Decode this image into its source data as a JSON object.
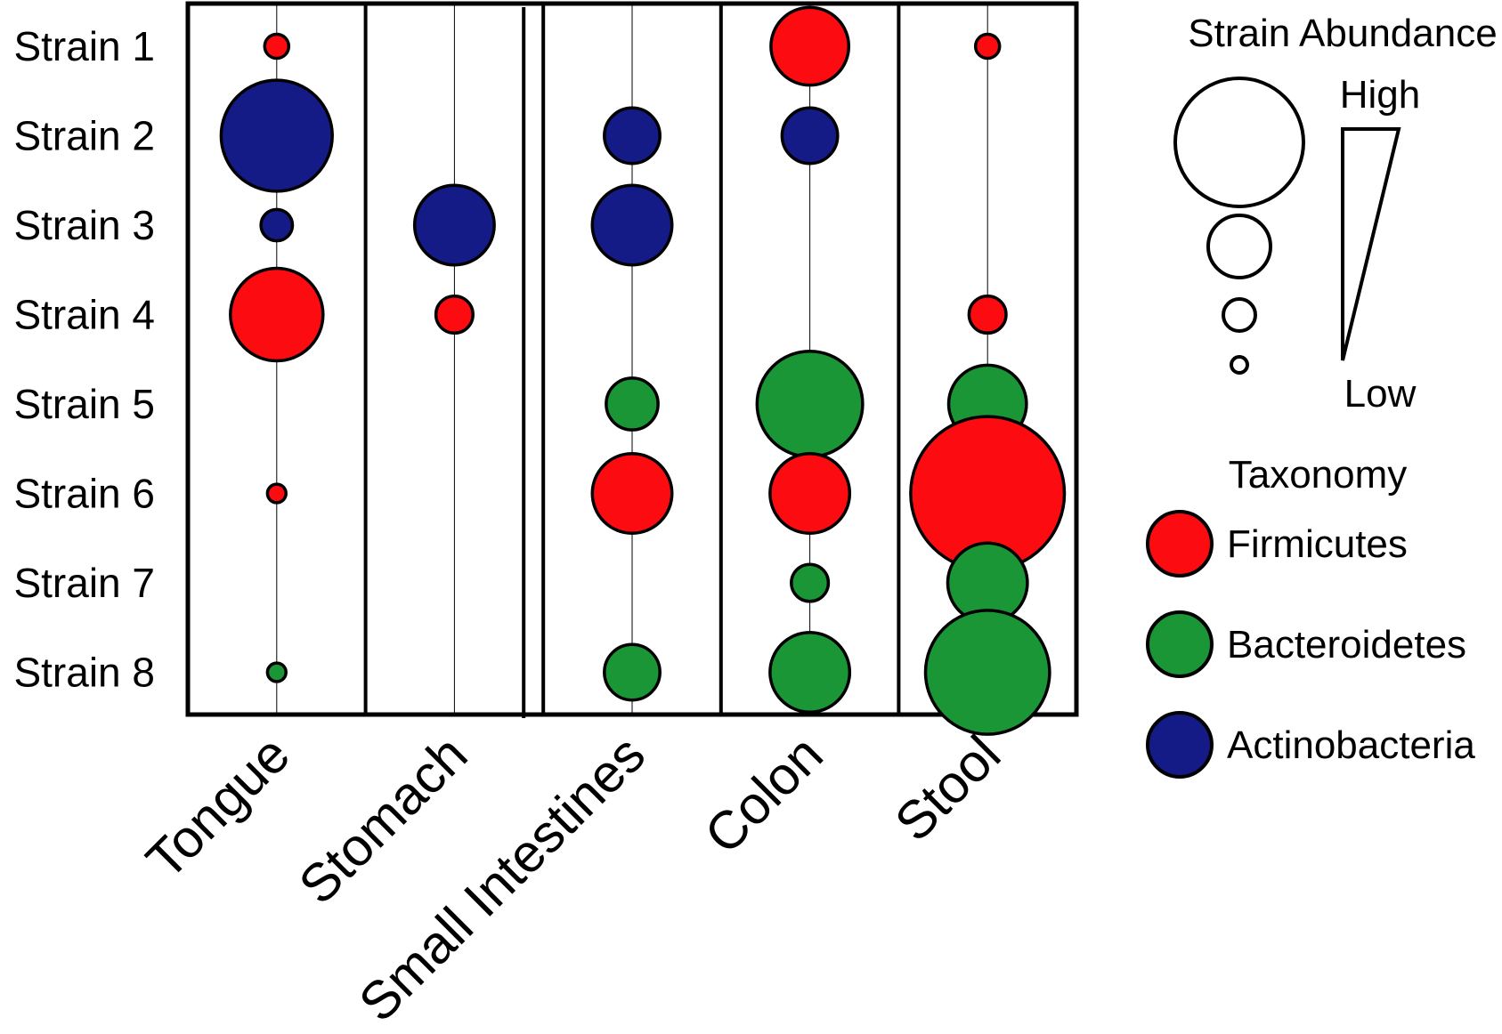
{
  "chart_data": {
    "type": "bubble-matrix",
    "sites": [
      "Tongue",
      "Stomach",
      "Small Intestines",
      "Colon",
      "Stool"
    ],
    "strains": [
      "Strain 1",
      "Strain 2",
      "Strain 3",
      "Strain 4",
      "Strain 5",
      "Strain 6",
      "Strain 7",
      "Strain 8"
    ],
    "taxonomy": [
      "Firmicutes",
      "Actinobacteria",
      "Actinobacteria",
      "Firmicutes",
      "Bacteroidetes",
      "Firmicutes",
      "Bacteroidetes",
      "Bacteroidetes"
    ],
    "abundance": {
      "note_units": "relative abundance, 0 = absent, 1 = highest",
      "values": [
        [
          0.13,
          0,
          0,
          0.42,
          0.13
        ],
        [
          0.6,
          0,
          0.3,
          0.3,
          0
        ],
        [
          0.17,
          0.43,
          0.43,
          0,
          0
        ],
        [
          0.5,
          0.2,
          0,
          0,
          0.2
        ],
        [
          0,
          0,
          0.28,
          0.57,
          0.42
        ],
        [
          0.1,
          0,
          0.43,
          0.43,
          0.83
        ],
        [
          0,
          0,
          0,
          0.2,
          0.43
        ],
        [
          0.1,
          0,
          0.3,
          0.43,
          0.67
        ]
      ]
    },
    "legend": {
      "abundance_title": "Strain Abundance",
      "high_label": "High",
      "low_label": "Low",
      "taxonomy_title": "Taxonomy",
      "groups": [
        {
          "name": "Firmicutes",
          "color": "#fc0c10"
        },
        {
          "name": "Bacteroidetes",
          "color": "#1a9636"
        },
        {
          "name": "Actinobacteria",
          "color": "#141a86"
        }
      ]
    },
    "grid": false
  }
}
